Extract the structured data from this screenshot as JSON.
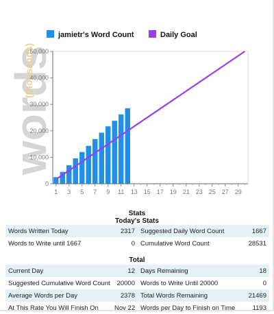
{
  "legend": {
    "word_count": "jamietr's Word Count",
    "daily_goal": "Daily Goal"
  },
  "watermark": {
    "big": "words",
    "small": "(thousands)"
  },
  "colors": {
    "bar": "#1e90e6",
    "goal_line": "#9b3cf0",
    "axis": "#888888",
    "row_alt": "#e4f1f7"
  },
  "chart_data": {
    "type": "bar",
    "title": "",
    "xlabel": "",
    "ylabel": "",
    "ylim": [
      0,
      50000
    ],
    "xlim": [
      1,
      30
    ],
    "y_ticks": [
      "0",
      "10,000",
      "20,000",
      "30,000",
      "40,000",
      "50,000"
    ],
    "y_tick_values": [
      0,
      10000,
      20000,
      30000,
      40000,
      50000
    ],
    "x_ticks": [
      "1",
      "3",
      "5",
      "7",
      "9",
      "11",
      "13",
      "15",
      "17",
      "19",
      "21",
      "23",
      "25",
      "27",
      "29"
    ],
    "x_tick_values": [
      1,
      3,
      5,
      7,
      9,
      11,
      13,
      15,
      17,
      19,
      21,
      23,
      25,
      27,
      29
    ],
    "series": [
      {
        "name": "jamietr's Word Count",
        "type": "bar",
        "x": [
          1,
          2,
          3,
          4,
          5,
          6,
          7,
          8,
          9,
          10,
          11,
          12
        ],
        "values": [
          2500,
          4500,
          7000,
          9600,
          12000,
          14300,
          16900,
          19300,
          21700,
          23800,
          26200,
          28531
        ]
      },
      {
        "name": "Daily Goal",
        "type": "line",
        "x": [
          1,
          30
        ],
        "values": [
          1667,
          50000
        ]
      }
    ]
  },
  "stats": {
    "title": "Stats",
    "today_title": "Today's Stats",
    "today_rows": [
      [
        "Words Written Today",
        "2317",
        "Suggested Daily Word Count",
        "1667"
      ],
      [
        "Words to Write until 1667",
        "0",
        "Cumulative Word Count",
        "28531"
      ]
    ],
    "total_title": "Total",
    "total_rows": [
      [
        "Current Day",
        "12",
        "Days Remaining",
        "18"
      ],
      [
        "Suggested Cumulative Word Count",
        "20000",
        "Words to Write Until 20000",
        "0"
      ],
      [
        "Average Words per Day",
        "2378",
        "Total Words Remaining",
        "21469"
      ],
      [
        "At This Rate You Will Finish On",
        "Nov 22",
        "Words per Day to Finish on Time",
        "1193"
      ]
    ]
  }
}
